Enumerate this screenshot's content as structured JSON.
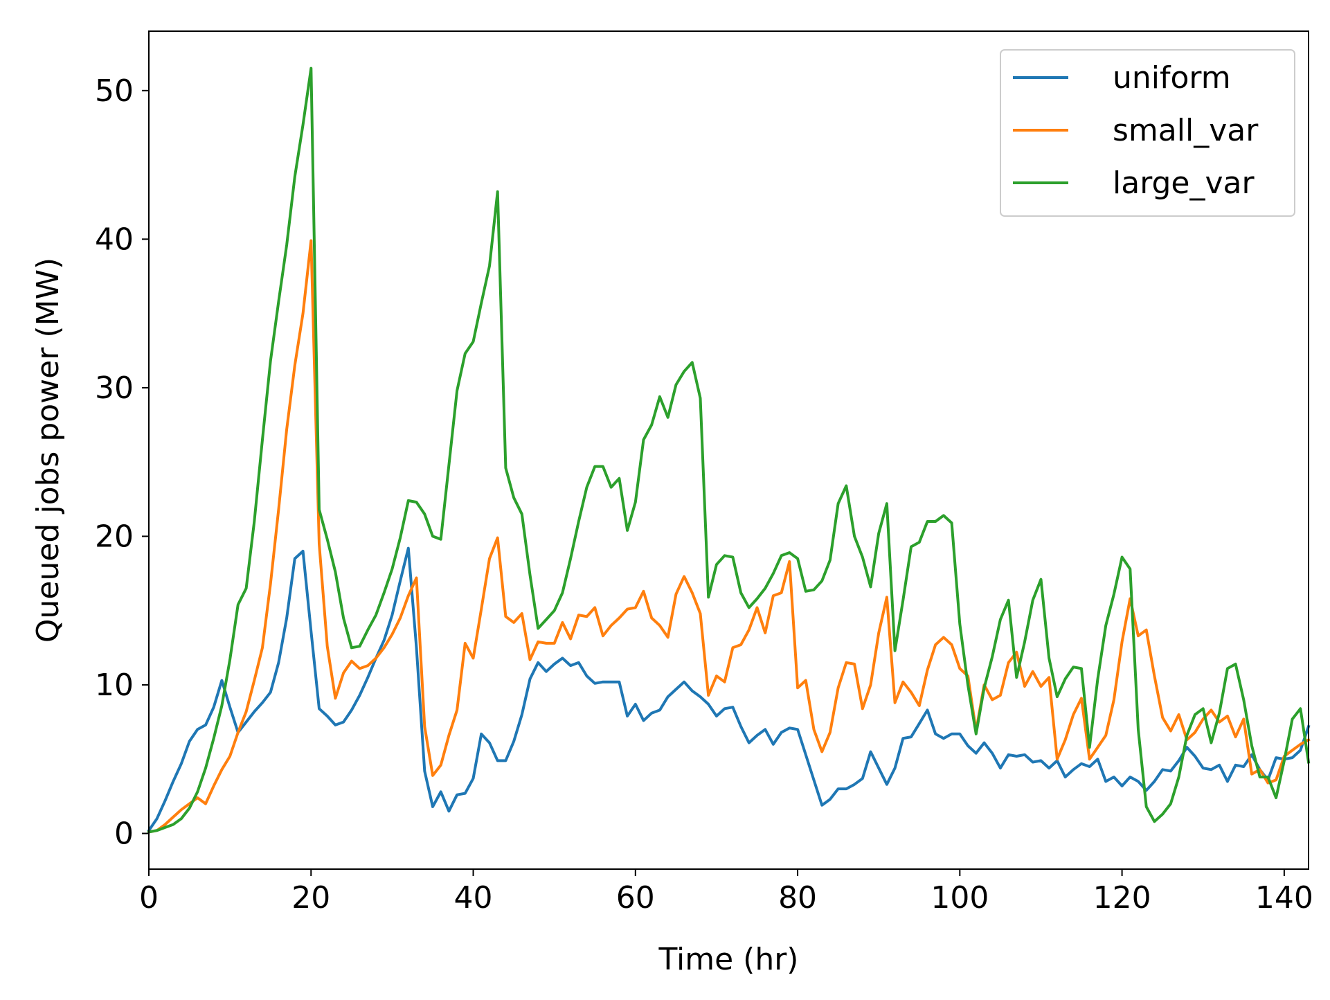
{
  "chart_data": {
    "type": "line",
    "title": "",
    "xlabel": "Time (hr)",
    "ylabel": "Queued jobs power (MW)",
    "xlim": [
      0,
      143
    ],
    "ylim": [
      -2.4,
      54
    ],
    "xticks": [
      0,
      20,
      40,
      60,
      80,
      100,
      120,
      140
    ],
    "yticks": [
      0,
      10,
      20,
      30,
      40,
      50
    ],
    "grid": false,
    "legend_position": "top-right",
    "series": [
      {
        "name": "uniform",
        "color": "#1f77b4",
        "x": [
          0,
          1,
          2,
          3,
          4,
          5,
          6,
          7,
          8,
          9,
          10,
          11,
          12,
          13,
          14,
          15,
          16,
          17,
          18,
          19,
          20,
          21,
          22,
          23,
          24,
          25,
          26,
          27,
          28,
          29,
          30,
          31,
          32,
          33,
          34,
          35,
          36,
          37,
          38,
          39,
          40,
          41,
          42,
          43,
          44,
          45,
          46,
          47,
          48,
          49,
          50,
          51,
          52,
          53,
          54,
          55,
          56,
          57,
          58,
          59,
          60,
          61,
          62,
          63,
          64,
          65,
          66,
          67,
          68,
          69,
          70,
          71,
          72,
          73,
          74,
          75,
          76,
          77,
          78,
          79,
          80,
          81,
          82,
          83,
          84,
          85,
          86,
          87,
          88,
          89,
          90,
          91,
          92,
          93,
          94,
          95,
          96,
          97,
          98,
          99,
          100,
          101,
          102,
          103,
          104,
          105,
          106,
          107,
          108,
          109,
          110,
          111,
          112,
          113,
          114,
          115,
          116,
          117,
          118,
          119,
          120,
          121,
          122,
          123,
          124,
          125,
          126,
          127,
          128,
          129,
          130,
          131,
          132,
          133,
          134,
          135,
          136,
          137,
          138,
          139,
          140,
          141,
          142,
          143
        ],
        "values": [
          0.2,
          1.0,
          2.2,
          3.5,
          4.7,
          6.2,
          7.0,
          7.3,
          8.5,
          10.3,
          8.5,
          6.8,
          7.5,
          8.2,
          8.8,
          9.5,
          11.5,
          14.5,
          18.5,
          19.0,
          13.6,
          8.4,
          7.9,
          7.3,
          7.5,
          8.3,
          9.3,
          10.5,
          11.8,
          13.0,
          14.7,
          17.0,
          19.2,
          12.5,
          4.2,
          1.8,
          2.8,
          1.5,
          2.6,
          2.7,
          3.7,
          6.7,
          6.1,
          4.9,
          4.9,
          6.2,
          8.0,
          10.4,
          11.5,
          10.9,
          11.4,
          11.8,
          11.3,
          11.5,
          10.6,
          10.1,
          10.2,
          10.2,
          10.2,
          7.9,
          8.7,
          7.6,
          8.1,
          8.3,
          9.2,
          9.7,
          10.2,
          9.6,
          9.2,
          8.7,
          7.9,
          8.4,
          8.5,
          7.2,
          6.1,
          6.6,
          7.0,
          6.0,
          6.8,
          7.1,
          7.0,
          5.3,
          3.6,
          1.9,
          2.3,
          3.0,
          3.0,
          3.3,
          3.7,
          5.5,
          4.4,
          3.3,
          4.4,
          6.4,
          6.5,
          7.4,
          8.3,
          6.7,
          6.4,
          6.7,
          6.7,
          5.9,
          5.4,
          6.1,
          5.4,
          4.4,
          5.3,
          5.2,
          5.3,
          4.8,
          4.9,
          4.4,
          4.9,
          3.8,
          4.3,
          4.7,
          4.5,
          5.0,
          3.5,
          3.8,
          3.2,
          3.8,
          3.5,
          2.9,
          3.5,
          4.3,
          4.2,
          4.9,
          5.8,
          5.2,
          4.4,
          4.3,
          4.6,
          3.5,
          4.6,
          4.5,
          5.3,
          4.3,
          3.6,
          5.1,
          5.0,
          5.1,
          5.6,
          7.2
        ]
      },
      {
        "name": "small_var",
        "color": "#ff7f0e",
        "x": [
          0,
          1,
          2,
          3,
          4,
          5,
          6,
          7,
          8,
          9,
          10,
          11,
          12,
          13,
          14,
          15,
          16,
          17,
          18,
          19,
          20,
          21,
          22,
          23,
          24,
          25,
          26,
          27,
          28,
          29,
          30,
          31,
          32,
          33,
          34,
          35,
          36,
          37,
          38,
          39,
          40,
          41,
          42,
          43,
          44,
          45,
          46,
          47,
          48,
          49,
          50,
          51,
          52,
          53,
          54,
          55,
          56,
          57,
          58,
          59,
          60,
          61,
          62,
          63,
          64,
          65,
          66,
          67,
          68,
          69,
          70,
          71,
          72,
          73,
          74,
          75,
          76,
          77,
          78,
          79,
          80,
          81,
          82,
          83,
          84,
          85,
          86,
          87,
          88,
          89,
          90,
          91,
          92,
          93,
          94,
          95,
          96,
          97,
          98,
          99,
          100,
          101,
          102,
          103,
          104,
          105,
          106,
          107,
          108,
          109,
          110,
          111,
          112,
          113,
          114,
          115,
          116,
          117,
          118,
          119,
          120,
          121,
          122,
          123,
          124,
          125,
          126,
          127,
          128,
          129,
          130,
          131,
          132,
          133,
          134,
          135,
          136,
          137,
          138,
          139,
          140,
          141,
          142,
          143
        ],
        "values": [
          0.1,
          0.2,
          0.6,
          1.1,
          1.6,
          2.0,
          2.4,
          2.0,
          3.2,
          4.3,
          5.2,
          6.8,
          8.2,
          10.3,
          12.5,
          16.8,
          21.8,
          27.2,
          31.5,
          35.0,
          39.9,
          19.5,
          12.6,
          9.1,
          10.8,
          11.6,
          11.1,
          11.3,
          11.8,
          12.5,
          13.4,
          14.5,
          16.0,
          17.2,
          7.2,
          3.9,
          4.6,
          6.6,
          8.3,
          12.8,
          11.8,
          15.1,
          18.5,
          19.9,
          14.6,
          14.2,
          14.8,
          11.7,
          12.9,
          12.8,
          12.8,
          14.2,
          13.1,
          14.7,
          14.6,
          15.2,
          13.3,
          14.0,
          14.5,
          15.1,
          15.2,
          16.3,
          14.5,
          14.0,
          13.2,
          16.1,
          17.3,
          16.2,
          14.8,
          9.3,
          10.6,
          10.2,
          12.5,
          12.7,
          13.7,
          15.2,
          13.5,
          16.0,
          16.2,
          18.3,
          9.8,
          10.3,
          7.0,
          5.5,
          6.8,
          9.8,
          11.5,
          11.4,
          8.4,
          10.0,
          13.5,
          15.9,
          8.8,
          10.2,
          9.5,
          8.6,
          11.0,
          12.7,
          13.2,
          12.7,
          11.1,
          10.6,
          6.9,
          10.0,
          9.0,
          9.3,
          11.5,
          12.2,
          9.9,
          10.9,
          9.9,
          10.5,
          5.0,
          6.3,
          8.0,
          9.1,
          5.0,
          5.8,
          6.6,
          9.0,
          12.9,
          15.8,
          13.3,
          13.7,
          10.6,
          7.8,
          6.9,
          8.0,
          6.3,
          6.8,
          7.7,
          8.3,
          7.5,
          7.9,
          6.5,
          7.7,
          4.0,
          4.3,
          3.4,
          3.6,
          5.2,
          5.6,
          6.0,
          6.3
        ]
      },
      {
        "name": "large_var",
        "color": "#2ca02c",
        "x": [
          0,
          1,
          2,
          3,
          4,
          5,
          6,
          7,
          8,
          9,
          10,
          11,
          12,
          13,
          14,
          15,
          16,
          17,
          18,
          19,
          20,
          21,
          22,
          23,
          24,
          25,
          26,
          27,
          28,
          29,
          30,
          31,
          32,
          33,
          34,
          35,
          36,
          37,
          38,
          39,
          40,
          41,
          42,
          43,
          44,
          45,
          46,
          47,
          48,
          49,
          50,
          51,
          52,
          53,
          54,
          55,
          56,
          57,
          58,
          59,
          60,
          61,
          62,
          63,
          64,
          65,
          66,
          67,
          68,
          69,
          70,
          71,
          72,
          73,
          74,
          75,
          76,
          77,
          78,
          79,
          80,
          81,
          82,
          83,
          84,
          85,
          86,
          87,
          88,
          89,
          90,
          91,
          92,
          93,
          94,
          95,
          96,
          97,
          98,
          99,
          100,
          101,
          102,
          103,
          104,
          105,
          106,
          107,
          108,
          109,
          110,
          111,
          112,
          113,
          114,
          115,
          116,
          117,
          118,
          119,
          120,
          121,
          122,
          123,
          124,
          125,
          126,
          127,
          128,
          129,
          130,
          131,
          132,
          133,
          134,
          135,
          136,
          137,
          138,
          139,
          140,
          141,
          142,
          143
        ],
        "values": [
          0.1,
          0.2,
          0.4,
          0.6,
          1.0,
          1.7,
          2.8,
          4.4,
          6.4,
          8.6,
          11.7,
          15.4,
          16.5,
          21.0,
          26.5,
          31.8,
          35.8,
          39.6,
          44.2,
          47.7,
          51.5,
          21.8,
          19.8,
          17.6,
          14.5,
          12.5,
          12.6,
          13.7,
          14.7,
          16.2,
          17.8,
          19.9,
          22.4,
          22.3,
          21.5,
          20.0,
          19.8,
          24.8,
          29.8,
          32.3,
          33.1,
          35.7,
          38.2,
          43.2,
          24.6,
          22.6,
          21.5,
          17.4,
          13.8,
          14.4,
          15.0,
          16.2,
          18.5,
          21.0,
          23.3,
          24.7,
          24.7,
          23.3,
          23.9,
          20.4,
          22.3,
          26.5,
          27.5,
          29.4,
          28.0,
          30.2,
          31.1,
          31.7,
          29.3,
          15.9,
          18.1,
          18.7,
          18.6,
          16.2,
          15.2,
          15.8,
          16.5,
          17.5,
          18.7,
          18.9,
          18.5,
          16.3,
          16.4,
          17.0,
          18.4,
          22.2,
          23.4,
          20.0,
          18.6,
          16.6,
          20.2,
          22.2,
          12.3,
          15.7,
          19.3,
          19.6,
          21.0,
          21.0,
          21.4,
          20.9,
          14.1,
          10.0,
          6.7,
          9.8,
          11.9,
          14.4,
          15.7,
          10.5,
          12.9,
          15.7,
          17.1,
          11.8,
          9.2,
          10.4,
          11.2,
          11.1,
          5.8,
          10.4,
          14.0,
          16.1,
          18.6,
          17.8,
          7.0,
          1.8,
          0.8,
          1.3,
          2.0,
          3.8,
          6.6,
          8.0,
          8.4,
          6.1,
          8.1,
          11.1,
          11.4,
          9.0,
          5.9,
          3.8,
          3.8,
          2.4,
          4.9,
          7.7,
          8.4,
          4.8
        ]
      }
    ]
  }
}
